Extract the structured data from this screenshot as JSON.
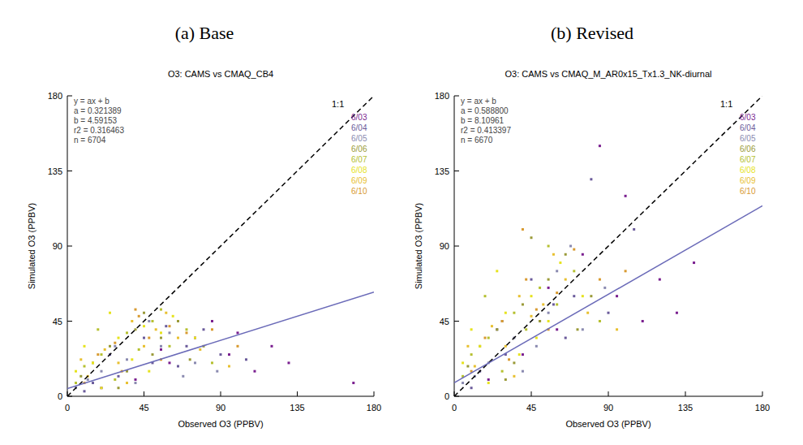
{
  "chart_data": [
    {
      "type": "scatter",
      "subtitle": "(a) Base",
      "title": "O3: CAMS vs CMAQ_CB4",
      "x_label": "Observed O3 (PPBV)",
      "y_label": "Simulated O3 (PPBV)",
      "xlim": [
        0,
        180
      ],
      "ylim": [
        0,
        180
      ],
      "xticks": [
        0,
        45,
        90,
        135,
        180
      ],
      "yticks": [
        0,
        45,
        90,
        135,
        180
      ],
      "grid": false,
      "fit": {
        "equation": "y = ax + b",
        "color": "#6a6ab8",
        "a": {
          "value": 0.321389,
          "label": "a =  0.321389"
        },
        "b": {
          "value": 4.59153,
          "label": "b =  4.59153"
        },
        "r2": {
          "value": 0.316463,
          "label": "r2 = 0.316463"
        },
        "n": {
          "value": 6704,
          "label": "n = 6704"
        }
      },
      "annotations": [
        "1:1"
      ],
      "series": [
        {
          "name": "6/03",
          "color": "#7a1f8f",
          "x": [
            95,
            110,
            120,
            60,
            75,
            40,
            130,
            85,
            20,
            100,
            55,
            168
          ],
          "values": [
            25,
            15,
            30,
            20,
            35,
            10,
            20,
            45,
            5,
            38,
            28,
            8
          ]
        },
        {
          "name": "6/04",
          "color": "#6b5b9b",
          "x": [
            30,
            50,
            70,
            15,
            90,
            45,
            65,
            105,
            25,
            80,
            10,
            58
          ],
          "values": [
            12,
            20,
            30,
            8,
            25,
            35,
            18,
            22,
            25,
            40,
            3,
            42
          ]
        },
        {
          "name": "6/05",
          "color": "#8a8ab0",
          "x": [
            20,
            35,
            55,
            40,
            75,
            12,
            60,
            28,
            88,
            48,
            5,
            68
          ],
          "values": [
            15,
            22,
            30,
            8,
            20,
            10,
            38,
            30,
            15,
            45,
            5,
            12
          ]
        },
        {
          "name": "6/06",
          "color": "#9a9a38",
          "x": [
            25,
            40,
            55,
            15,
            65,
            35,
            50,
            80,
            8,
            45,
            72,
            30
          ],
          "values": [
            30,
            40,
            35,
            20,
            45,
            15,
            25,
            30,
            12,
            50,
            22,
            5
          ]
        },
        {
          "name": "6/07",
          "color": "#b5c030",
          "x": [
            20,
            35,
            50,
            10,
            60,
            28,
            42,
            70,
            5,
            55,
            85,
            18
          ],
          "values": [
            25,
            38,
            45,
            18,
            30,
            10,
            28,
            40,
            8,
            52,
            20,
            40
          ]
        },
        {
          "name": "6/08",
          "color": "#e6e31e",
          "x": [
            15,
            30,
            45,
            25,
            55,
            10,
            38,
            62,
            20,
            48,
            75,
            5
          ],
          "values": [
            20,
            35,
            42,
            50,
            38,
            30,
            22,
            48,
            5,
            15,
            35,
            15
          ]
        },
        {
          "name": "6/09",
          "color": "#e8c030",
          "x": [
            22,
            38,
            52,
            12,
            65,
            30,
            45,
            78,
            8,
            58,
            95,
            35
          ],
          "values": [
            28,
            45,
            40,
            12,
            35,
            20,
            30,
            28,
            22,
            50,
            18,
            8
          ]
        },
        {
          "name": "6/10",
          "color": "#d89a30",
          "x": [
            28,
            42,
            60,
            18,
            70,
            32,
            48,
            85,
            10,
            55,
            100,
            40
          ],
          "values": [
            32,
            48,
            42,
            25,
            38,
            15,
            35,
            40,
            8,
            22,
            30,
            52
          ]
        }
      ]
    },
    {
      "type": "scatter",
      "subtitle": "(b) Revised",
      "title": "O3: CAMS vs CMAQ_M_AR0x15_Tx1.3_NK-diurnal",
      "x_label": "Observed O3 (PPBV)",
      "y_label": "Simulated O3 (PPBV)",
      "xlim": [
        0,
        180
      ],
      "ylim": [
        0,
        180
      ],
      "xticks": [
        0,
        45,
        90,
        135,
        180
      ],
      "yticks": [
        0,
        45,
        90,
        135,
        180
      ],
      "grid": false,
      "fit": {
        "equation": "y = ax + b",
        "color": "#6a6ab8",
        "a": {
          "value": 0.5888,
          "label": "a =  0.588800"
        },
        "b": {
          "value": 8.10961,
          "label": "b =  8.10961"
        },
        "r2": {
          "value": 0.413397,
          "label": "r2 = 0.413397"
        },
        "n": {
          "value": 6670,
          "label": "n = 6670"
        }
      },
      "annotations": [
        "1:1"
      ],
      "series": [
        {
          "name": "6/03",
          "color": "#7a1f8f",
          "x": [
            95,
            110,
            85,
            60,
            75,
            40,
            120,
            100,
            20,
            130,
            55,
            140
          ],
          "values": [
            60,
            45,
            150,
            40,
            85,
            25,
            70,
            120,
            10,
            50,
            65,
            80
          ]
        },
        {
          "name": "6/04",
          "color": "#6b5b9b",
          "x": [
            30,
            50,
            70,
            15,
            90,
            45,
            65,
            105,
            25,
            80,
            10,
            58
          ],
          "values": [
            25,
            45,
            60,
            15,
            50,
            70,
            35,
            100,
            40,
            130,
            5,
            55
          ]
        },
        {
          "name": "6/05",
          "color": "#8a8ab0",
          "x": [
            20,
            35,
            55,
            40,
            75,
            12,
            60,
            28,
            88,
            48,
            5,
            68
          ],
          "values": [
            20,
            35,
            50,
            15,
            40,
            12,
            75,
            45,
            65,
            30,
            8,
            90
          ]
        },
        {
          "name": "6/06",
          "color": "#9a9a38",
          "x": [
            25,
            40,
            55,
            15,
            65,
            35,
            50,
            80,
            8,
            45,
            72,
            30
          ],
          "values": [
            40,
            55,
            70,
            30,
            85,
            20,
            45,
            60,
            18,
            95,
            40,
            10
          ]
        },
        {
          "name": "6/07",
          "color": "#b5c030",
          "x": [
            20,
            35,
            50,
            10,
            60,
            28,
            42,
            70,
            5,
            55,
            85,
            18
          ],
          "values": [
            35,
            50,
            65,
            25,
            55,
            15,
            40,
            75,
            12,
            90,
            45,
            60
          ]
        },
        {
          "name": "6/08",
          "color": "#e6e31e",
          "x": [
            15,
            30,
            45,
            25,
            55,
            10,
            38,
            62,
            20,
            48,
            75,
            5
          ],
          "values": [
            30,
            50,
            60,
            75,
            45,
            40,
            25,
            80,
            8,
            35,
            60,
            20
          ]
        },
        {
          "name": "6/09",
          "color": "#e8c030",
          "x": [
            22,
            38,
            52,
            12,
            65,
            30,
            45,
            78,
            8,
            58,
            95,
            35
          ],
          "values": [
            42,
            60,
            55,
            18,
            70,
            30,
            48,
            50,
            30,
            85,
            40,
            12
          ]
        },
        {
          "name": "6/10",
          "color": "#d89a30",
          "x": [
            28,
            42,
            60,
            18,
            70,
            32,
            48,
            85,
            10,
            55,
            100,
            40
          ],
          "values": [
            45,
            70,
            62,
            35,
            88,
            22,
            52,
            70,
            15,
            40,
            75,
            100
          ]
        }
      ]
    }
  ]
}
